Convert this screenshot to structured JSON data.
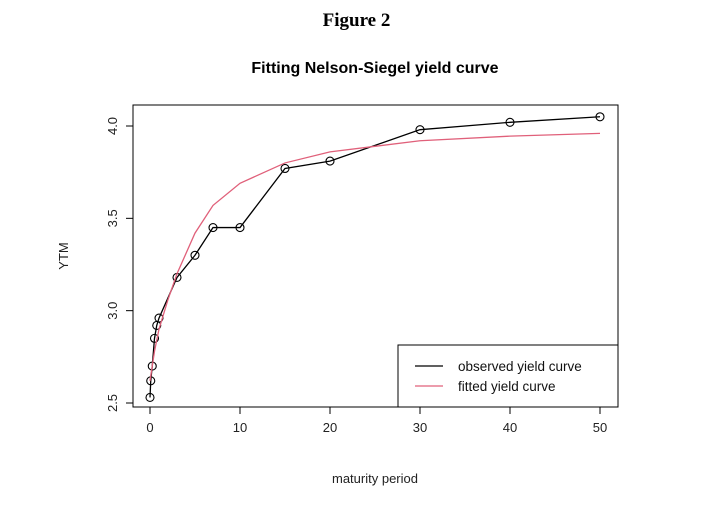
{
  "figure_label": "Figure 2",
  "chart_data": {
    "type": "line",
    "title": "Fitting Nelson-Siegel yield curve",
    "xlabel": "maturity period",
    "ylabel": "YTM",
    "xlim": [
      0,
      50
    ],
    "ylim": [
      2.5,
      4.0
    ],
    "xticks": [
      "0",
      "10",
      "20",
      "30",
      "40",
      "50"
    ],
    "yticks": [
      "2.5",
      "3.0",
      "3.5",
      "4.0"
    ],
    "grid": false,
    "legend_position": "bottom-right",
    "series": [
      {
        "name": "observed yield curve",
        "color": "#000000",
        "markers": "open-circle",
        "x": [
          0,
          0.083,
          0.25,
          0.5,
          0.75,
          1,
          3,
          5,
          7,
          10,
          15,
          20,
          30,
          40,
          50
        ],
        "y": [
          2.53,
          2.62,
          2.7,
          2.85,
          2.92,
          2.96,
          3.18,
          3.3,
          3.45,
          3.45,
          3.77,
          3.81,
          3.98,
          4.02,
          4.05
        ]
      },
      {
        "name": "fitted yield curve",
        "color": "#e0607a",
        "markers": "none",
        "x": [
          0,
          0.5,
          1,
          2,
          3,
          5,
          7,
          10,
          15,
          20,
          25,
          30,
          40,
          50
        ],
        "y": [
          2.62,
          2.78,
          2.9,
          3.06,
          3.2,
          3.42,
          3.57,
          3.69,
          3.8,
          3.86,
          3.89,
          3.92,
          3.945,
          3.96
        ]
      }
    ]
  }
}
